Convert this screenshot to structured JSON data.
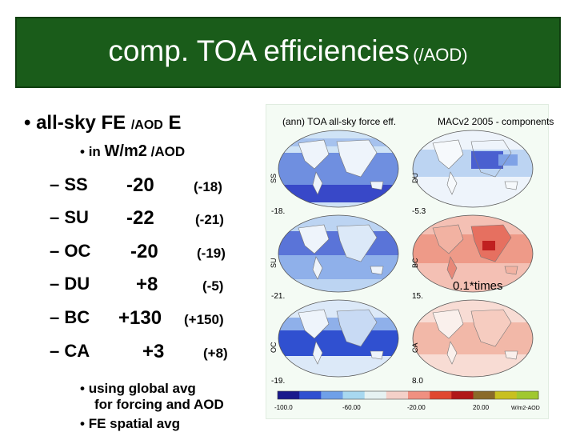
{
  "title": {
    "main": "comp. TOA efficiencies",
    "sub": "(/AOD)"
  },
  "bullet1": {
    "marker": "•",
    "prefix": "all-sky FE",
    "mid": "/AOD",
    "suffix": "E"
  },
  "bullet2": {
    "marker": "•",
    "prefix": "in",
    "unit": "W/m2",
    "suffix": "/AOD"
  },
  "rows": [
    {
      "label": "– SS",
      "value": "-20",
      "paren": "(-18)"
    },
    {
      "label": "– SU",
      "value": "-22",
      "paren": "(-21)"
    },
    {
      "label": "– OC",
      "value": "-20",
      "paren": "(-19)"
    },
    {
      "label": "– DU",
      "value": "+8",
      "paren": "(-5)"
    },
    {
      "label": "– BC",
      "value": "+130",
      "paren": "(+150)"
    },
    {
      "label": "– CA",
      "value": "+3",
      "paren": "(+8)"
    }
  ],
  "notes": [
    {
      "marker": "•",
      "line1": "using global avg",
      "line2": "for forcing and AOD"
    },
    {
      "marker": "•",
      "line1": "FE spatial avg"
    }
  ],
  "figure": {
    "title_left": "(ann) TOA all-sky force eff.",
    "title_right": "MACv2 2005 - components",
    "maps": [
      {
        "label": "SS",
        "value": "-18.",
        "tone": "blue"
      },
      {
        "label": "DU",
        "value": "-5.3",
        "tone": "blue"
      },
      {
        "label": "SU",
        "value": "-21.",
        "tone": "blue"
      },
      {
        "label": "BC",
        "value": "15.",
        "tone": "red"
      },
      {
        "label": "OC",
        "value": "-19.",
        "tone": "blue"
      },
      {
        "label": "CA",
        "value": "8.0",
        "tone": "pink"
      }
    ],
    "colorbar": {
      "ticks": [
        "-100.0",
        "-60.00",
        "-20.00",
        "20.00",
        "W/m2-AOD"
      ],
      "colors": [
        "#1a1a8c",
        "#3050d0",
        "#6fa0e8",
        "#a8d8f0",
        "#e6f2f2",
        "#f4d0c8",
        "#f09080",
        "#e04830",
        "#b01818",
        "#8a6a2a",
        "#c8c020",
        "#a0c830"
      ]
    }
  },
  "overlay": "0.1*times"
}
